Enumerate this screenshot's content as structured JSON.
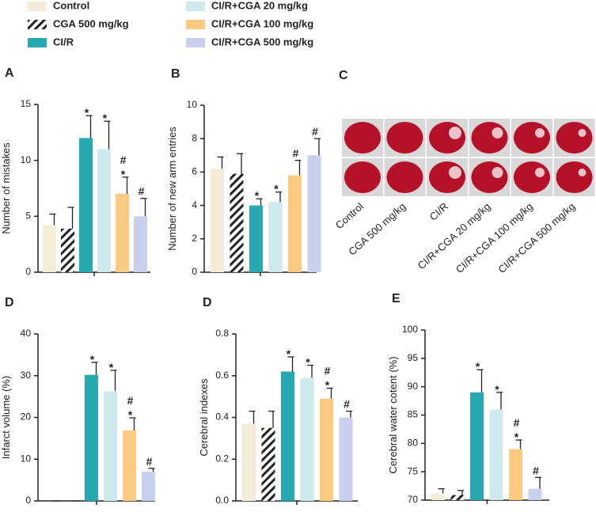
{
  "legend": {
    "series": [
      {
        "name": "Control",
        "color": "#f3ecd9",
        "pattern": "solid"
      },
      {
        "name": "CGA 500 mg/kg",
        "color": "#ffffff",
        "pattern": "hatch"
      },
      {
        "name": "CI/R",
        "color": "#27a9b1",
        "pattern": "solid"
      },
      {
        "name": "CI/R+CGA 20 mg/kg",
        "color": "#cfeaed",
        "pattern": "solid"
      },
      {
        "name": "CI/R+CGA 100 mg/kg",
        "color": "#fbc980",
        "pattern": "solid"
      },
      {
        "name": "CI/R+CGA 500 mg/kg",
        "color": "#c9d0ee",
        "pattern": "solid"
      }
    ]
  },
  "image_panel": {
    "letter": "C"
  },
  "chart_data": [
    {
      "type": "bar",
      "letter": "A",
      "ylabel": "Number of mistakes",
      "ylim": [
        0,
        15
      ],
      "yticks": [
        0,
        5,
        10,
        15
      ],
      "values": [
        4.2,
        3.9,
        12,
        11,
        7,
        5
      ],
      "errors": [
        1.0,
        1.9,
        2.0,
        2.5,
        1.5,
        1.6
      ],
      "annotations": [
        null,
        null,
        "*",
        "*",
        [
          "#",
          "*"
        ],
        "#"
      ]
    },
    {
      "type": "bar",
      "letter": "B",
      "ylabel": "Number of new arm entries",
      "ylim": [
        0,
        10
      ],
      "yticks": [
        0,
        2,
        4,
        6,
        8,
        10
      ],
      "values": [
        6.2,
        5.9,
        4.0,
        4.2,
        5.8,
        7.0
      ],
      "errors": [
        0.7,
        1.2,
        0.4,
        0.6,
        0.9,
        1.0
      ],
      "annotations": [
        null,
        null,
        "*",
        "*",
        "#",
        "#"
      ]
    },
    {
      "type": "bar",
      "letter": "D",
      "ylabel": "Infarct volume (%)",
      "ylim": [
        0,
        40
      ],
      "yticks": [
        0,
        10,
        20,
        30,
        40
      ],
      "values": [
        0,
        0,
        30.2,
        26.3,
        16.9,
        7.0
      ],
      "errors": [
        0,
        0,
        3.0,
        5.0,
        3.0,
        0.8
      ],
      "annotations": [
        null,
        null,
        "*",
        "*",
        [
          "#",
          "*"
        ],
        "#"
      ]
    },
    {
      "type": "bar",
      "letter": "D",
      "ylabel": "Cerebral indexes",
      "ylim": [
        0,
        0.8
      ],
      "yticks": [
        {
          "value": 0,
          "label": "0.0"
        },
        0.2,
        0.4,
        0.6,
        0.8
      ],
      "values": [
        0.37,
        0.35,
        0.62,
        0.59,
        0.49,
        0.4
      ],
      "errors": [
        0.06,
        0.08,
        0.07,
        0.06,
        0.05,
        0.03
      ],
      "annotations": [
        null,
        null,
        "*",
        "*",
        [
          "#",
          "*"
        ],
        "#"
      ]
    },
    {
      "type": "bar",
      "letter": "E",
      "ylabel": "Cerebral water cotent (%)",
      "ylim": [
        70,
        100
      ],
      "yticks": [
        70,
        75,
        80,
        85,
        90,
        95,
        100
      ],
      "values": [
        71.2,
        70.9,
        89,
        86,
        79,
        72
      ],
      "errors": [
        0.8,
        0.8,
        4,
        3,
        1.6,
        2
      ],
      "annotations": [
        null,
        null,
        "*",
        "*",
        [
          "#",
          "*"
        ],
        "#"
      ]
    }
  ]
}
